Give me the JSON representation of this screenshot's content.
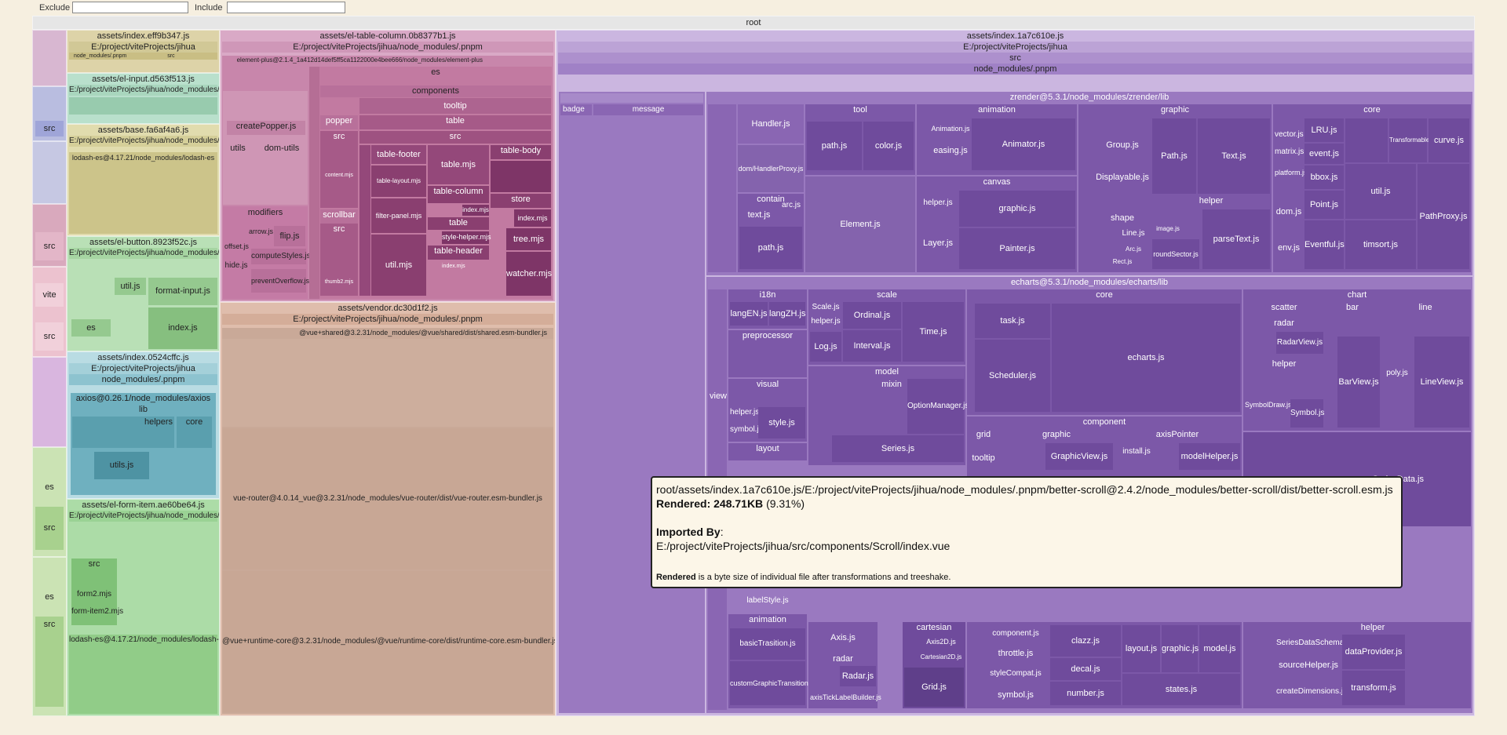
{
  "filter": {
    "exclude_label": "Exclude",
    "include_label": "Include",
    "exclude_value": "",
    "include_value": ""
  },
  "root_label": "root",
  "chunks": {
    "index_eff": "assets/index.eff9b347.js",
    "index_eff_proj": "E:/project/viteProjects/jihua",
    "index_eff_nm": "node_modules/.pnpm",
    "index_eff_src": "src",
    "el_input": "assets/el-input.d563f513.js",
    "el_input_proj": "E:/project/viteProjects/jihua/node_modules/.pnpm",
    "base": "assets/base.fa6af4a6.js",
    "base_proj": "E:/project/viteProjects/jihua/node_modules/.pnpm",
    "base_lodash": "lodash-es@4.17.21/node_modules/lodash-es",
    "el_button": "assets/el-button.8923f52c.js",
    "el_button_proj": "E:/project/viteProjects/jihua/node_modules/.pnpm",
    "el_button_util": "util.js",
    "el_button_format": "format-input.js",
    "el_button_es": "es",
    "el_button_index": "index.js",
    "index_0524": "assets/index.0524cffc.js",
    "index_0524_proj": "E:/project/viteProjects/jihua",
    "index_0524_nm": "node_modules/.pnpm",
    "axios": "axios@0.26.1/node_modules/axios",
    "axios_lib": "lib",
    "axios_helpers": "helpers",
    "axios_core": "core",
    "axios_utils": "utils.js",
    "el_form_item": "assets/el-form-item.ae60be64.js",
    "el_form_item_proj": "E:/project/viteProjects/jihua/node_modules/.pnpm",
    "el_form_src": "src",
    "el_form_form2": "form2.mjs",
    "el_form_formitem": "form-item2.mjs",
    "lodash2": "lodash-es@4.17.21/node_modules/lodash-es",
    "table_col": "assets/el-table-column.0b8377b1.js",
    "table_col_proj": "E:/project/viteProjects/jihua/node_modules/.pnpm",
    "table_col_ep": "element-plus@2.1.4_1a412d14def5ff5ca1122000e4bee666/node_modules/element-plus",
    "tc_es": "es",
    "tc_components": "components",
    "tc_tooltip": "tooltip",
    "tc_table": "table",
    "tc_src": "src",
    "tc_popper": "popper",
    "tc_createPopper": "createPopper.js",
    "tc_utils": "utils",
    "tc_domutils": "dom-utils",
    "tc_modifiers": "modifiers",
    "tc_arrow": "arrow.js",
    "tc_flip": "flip.js",
    "tc_offset": "offset.js",
    "tc_compute": "computeStyles.js",
    "tc_hide": "hide.js",
    "tc_prevent": "preventOverflow.js",
    "tc_table_footer": "table-footer",
    "tc_table_mjs": "table.mjs",
    "tc_table_body": "table-body",
    "tc_table_column": "table-column",
    "tc_index_mjs": "index.mjs",
    "tc_table2": "table",
    "tc_store": "store",
    "tc_filter_panel": "filter-panel.mjs",
    "tc_style_helper": "style-helper.mjs",
    "tc_index_mjs2": "index.mjs",
    "tc_table_header": "table-header",
    "tc_tree": "tree.mjs",
    "tc_util": "util.mjs",
    "tc_watcher": "watcher.mjs",
    "tc_table_layout": "table-layout.mjs",
    "tc_content": "content.mjs",
    "tc_scrollbar": "scrollbar",
    "tc_src2": "src",
    "tc_thumb": "thumb2.mjs",
    "vendor": "assets/vendor.dc30d1f2.js",
    "vendor_proj": "E:/project/viteProjects/jihua/node_modules/.pnpm",
    "vendor_shared": "@vue+shared@3.2.31/node_modules/@vue/shared/dist/shared.esm-bundler.js",
    "vendor_router": "vue-router@4.0.14_vue@3.2.31/node_modules/vue-router/dist/vue-router.esm-bundler.js",
    "vendor_runtime": "@vue+runtime-core@3.2.31/node_modules/@vue/runtime-core/dist/runtime-core.esm-bundler.js",
    "main": "assets/index.1a7c610e.js",
    "main_proj": "E:/project/viteProjects/jihua",
    "main_src": "src",
    "main_nm": "node_modules/.pnpm",
    "zrender": "zrender@5.3.1/node_modules/zrender/lib",
    "badge": "badge",
    "message": "message",
    "z_handler": "Handler.js",
    "z_dom_handler": "dom/HandlerProxy.js",
    "z_contain": "contain",
    "z_text": "text.js",
    "z_arc": "arc.js",
    "z_path": "path.js",
    "z_tool": "tool",
    "z_path_tool": "path.js",
    "z_color": "color.js",
    "z_element": "Element.js",
    "z_animation": "animation",
    "z_animation_js": "Animation.js",
    "z_easing": "easing.js",
    "z_animator": "Animator.js",
    "z_canvas": "canvas",
    "z_helper": "helper.js",
    "z_graphic": "graphic.js",
    "z_layer": "Layer.js",
    "z_painter": "Painter.js",
    "z_graphic_grp": "graphic",
    "z_group": "Group.js",
    "z_path_g": "Path.js",
    "z_text_g": "Text.js",
    "z_displayable": "Displayable.js",
    "z_helper_g": "helper",
    "z_shape": "shape",
    "z_line": "Line.js",
    "z_image": "image.js",
    "z_arcjs": "Arc.js",
    "z_rect": "Rect.js",
    "z_round": "roundSector.js",
    "z_parse": "parseText.js",
    "z_core": "core",
    "z_lru": "LRU.js",
    "z_vector": "vector.js",
    "z_matrix": "matrix.js",
    "z_event": "event.js",
    "z_bbox": "bbox.js",
    "z_platform": "platform.js",
    "z_point": "Point.js",
    "z_dom": "dom.js",
    "z_util": "util.js",
    "z_env": "env.js",
    "z_eventful": "Eventful.js",
    "z_timsort": "timsort.js",
    "z_curve": "curve.js",
    "z_transformable": "Transformable.js",
    "z_pathproxy": "PathProxy.js",
    "echarts": "echarts@5.3.1/node_modules/echarts/lib",
    "e_i18n": "i18n",
    "e_langEN": "langEN.js",
    "e_langZH": "langZH.js",
    "e_preprocessor": "preprocessor",
    "e_visual": "visual",
    "e_helper": "helper.js",
    "e_symbol": "symbol.js",
    "e_style": "style.js",
    "e_layout": "layout",
    "e_view": "view",
    "e_scale": "scale",
    "e_scale_js": "Scale.js",
    "e_ordinal": "Ordinal.js",
    "e_helper2": "helper.js",
    "e_log": "Log.js",
    "e_interval": "Interval.js",
    "e_time": "Time.js",
    "e_model": "model",
    "e_mixin": "mixin",
    "e_optionmanager": "OptionManager.js",
    "e_series": "Series.js",
    "e_core": "core",
    "e_task": "task.js",
    "e_echarts": "echarts.js",
    "e_scheduler": "Scheduler.js",
    "e_component": "component",
    "e_grid": "grid",
    "e_graphic": "graphic",
    "e_graphicview": "GraphicView.js",
    "e_tooltip": "tooltip",
    "e_axispointer": "axisPointer",
    "e_install": "install.js",
    "e_modelhelper": "modelHelper.js",
    "e_chart": "chart",
    "e_scatter": "scatter",
    "e_bar": "bar",
    "e_line": "line",
    "e_radar": "radar",
    "e_radarview": "RadarView.js",
    "e_helper_c": "helper",
    "e_symboldraw": "SymbolDraw.js",
    "e_symbol_js": "Symbol.js",
    "e_barview": "BarView.js",
    "e_lineview": "LineView.js",
    "e_poly": "poly.js",
    "e_seriesdata": "SeriesData.js",
    "e_animation": "animation",
    "e_basic": "basicTrasition.js",
    "e_custom": "customGraphicTransition.js",
    "e_axis": "Axis.js",
    "e_radar2": "radar",
    "e_radarjs": "Radar.js",
    "e_axistick": "axisTickLabelBuilder.js",
    "e_cartesian": "cartesian",
    "e_axis2d": "Axis2D.js",
    "e_cartesian2d": "Cartesian2D.js",
    "e_gridjs": "Grid.js",
    "e_component_js": "component.js",
    "e_throttle": "throttle.js",
    "e_stylecompat": "styleCompat.js",
    "e_symbol2": "symbol.js",
    "e_clazz": "clazz.js",
    "e_decal": "decal.js",
    "e_number": "number.js",
    "e_layoutjs": "layout.js",
    "e_graphicjs": "graphic.js",
    "e_modeljs": "model.js",
    "e_states": "states.js",
    "e_helper3": "helper",
    "e_seriesschema": "SeriesDataSchema.js",
    "e_dataprovider": "dataProvider.js",
    "e_sourcehelper": "sourceHelper.js",
    "e_createdim": "createDimensions.js",
    "e_transform": "transform.js",
    "e_labelstyle": "labelStyle.js"
  },
  "tooltip": {
    "path": "root/assets/index.1a7c610e.js/E:/project/viteProjects/jihua/node_modules/.pnpm/better-scroll@2.4.2/node_modules/better-scroll/dist/better-scroll.esm.js",
    "rendered_label": "Rendered:",
    "rendered_value": "248.71KB",
    "rendered_pct": "(9.31%)",
    "imported_label": "Imported By",
    "imported_colon": ":",
    "imported_value": "E:/project/viteProjects/jihua/src/components/Scroll/index.vue",
    "note_bold": "Rendered",
    "note_rest": " is a byte size of individual file after transformations and treeshake."
  },
  "colors": {
    "background": "#f6efe0",
    "root": "#e6e6e6",
    "green": "#a9d2a3",
    "olive": "#d0cf9e",
    "teal": "#7fb7c4",
    "pink": "#d7a0bf",
    "magenta": "#b6527f",
    "tan": "#c9a998",
    "purple": "#8a66b3",
    "purple_dark": "#6c469b"
  }
}
